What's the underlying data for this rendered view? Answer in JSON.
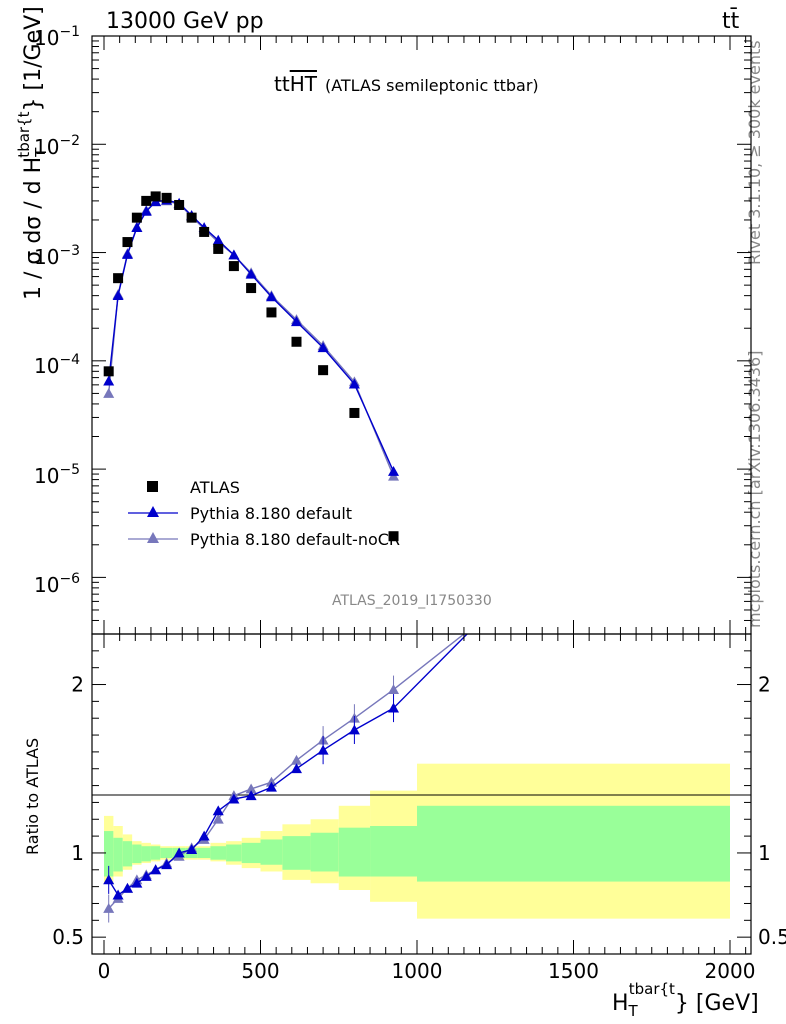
{
  "header": {
    "energy_label": "13000 GeV pp",
    "process_label": "tt̄"
  },
  "side_labels": {
    "rivet": "Rivet 3.1.10, ≥ 300k events",
    "mcplots": "mcplots.cern.ch [arXiv:1306.3436]"
  },
  "analysis_id": "ATLAS_2019_I1750330",
  "chart_data": [
    {
      "type": "scatter",
      "title": "ttHT (ATLAS semileptonic ttbar)",
      "title_main": "tt",
      "title_overline": "HT",
      "title_sub": "(ATLAS semileptonic ttbar)",
      "xlabel": "H_T^{tbar{t}} [GeV]",
      "ylabel": "1 / σ dσ / d H_T^{tbar{t}} [1/GeV]",
      "ylabel_parts": {
        "pre": "1 / σ dσ / d H",
        "sub": "T",
        "sup": "tbar{t",
        "post": "} [1/GeV]"
      },
      "xlabel_parts": {
        "main": "H",
        "sub": "T",
        "sup": "tbar{t",
        "post": "} [GeV]"
      },
      "yscale": "log",
      "ylim": [
        3e-07,
        0.1
      ],
      "xlim": [
        -50,
        2050
      ],
      "y_tick_labels": [
        "10^{-6}",
        "10^{-5}",
        "10^{-4}",
        "10^{-3}",
        "10^{-2}",
        "10^{-1}"
      ],
      "legend_position": "bottom-left",
      "x": [
        15,
        45,
        75,
        105,
        135,
        165,
        200,
        240,
        280,
        320,
        365,
        415,
        470,
        535,
        615,
        700,
        800,
        925,
        1500
      ],
      "series": [
        {
          "name": "ATLAS",
          "marker": "square",
          "color": "#000000",
          "values": [
            8e-05,
            0.00058,
            0.00125,
            0.0021,
            0.003,
            0.0033,
            0.0032,
            0.00275,
            0.0021,
            0.00155,
            0.00108,
            0.00075,
            0.00047,
            0.00028,
            0.00015,
            8.2e-05,
            3.3e-05,
            2.4e-06,
            null
          ]
        },
        {
          "name": "Pythia 8.180 default",
          "marker": "triangle",
          "color": "#0000cc",
          "values": [
            6.5e-05,
            0.0004,
            0.00096,
            0.0017,
            0.0024,
            0.00295,
            0.00305,
            0.00285,
            0.0022,
            0.0017,
            0.0013,
            0.00095,
            0.00063,
            0.00039,
            0.00023,
            0.000132,
            6.1e-05,
            9.5e-06,
            null
          ]
        },
        {
          "name": "Pythia 8.180 default-noCR",
          "marker": "triangle",
          "color": "#7777bb",
          "values": [
            5e-05,
            0.00041,
            0.00098,
            0.00172,
            0.00245,
            0.00295,
            0.003,
            0.0028,
            0.00215,
            0.00165,
            0.00125,
            0.00095,
            0.00065,
            0.0004,
            0.00024,
            0.000138,
            6.4e-05,
            8.6e-06,
            null
          ]
        }
      ]
    },
    {
      "type": "line",
      "ylabel": "Ratio to ATLAS",
      "ylim": [
        0.4,
        2.3
      ],
      "xlim": [
        -50,
        2050
      ],
      "x_ticks": [
        0,
        500,
        1000,
        1500,
        2000
      ],
      "y_ticks": [
        0.5,
        1,
        2
      ],
      "bands": {
        "edges": [
          0,
          30,
          60,
          90,
          120,
          150,
          180,
          220,
          260,
          300,
          340,
          390,
          440,
          500,
          570,
          660,
          750,
          850,
          1000,
          2000
        ],
        "green_lo": [
          0.86,
          0.89,
          0.92,
          0.94,
          0.95,
          0.96,
          0.97,
          0.97,
          0.97,
          0.97,
          0.96,
          0.95,
          0.94,
          0.93,
          0.9,
          0.89,
          0.86,
          0.86,
          0.83
        ],
        "green_hi": [
          1.13,
          1.09,
          1.07,
          1.05,
          1.04,
          1.04,
          1.03,
          1.03,
          1.03,
          1.03,
          1.04,
          1.05,
          1.06,
          1.08,
          1.1,
          1.12,
          1.15,
          1.16,
          1.28
        ],
        "yellow_lo": [
          0.82,
          0.86,
          0.9,
          0.93,
          0.94,
          0.95,
          0.96,
          0.96,
          0.96,
          0.96,
          0.95,
          0.93,
          0.91,
          0.89,
          0.84,
          0.82,
          0.78,
          0.71,
          0.61
        ],
        "yellow_hi": [
          1.22,
          1.16,
          1.11,
          1.07,
          1.06,
          1.05,
          1.04,
          1.04,
          1.04,
          1.04,
          1.06,
          1.07,
          1.09,
          1.13,
          1.17,
          1.2,
          1.28,
          1.37,
          1.53
        ]
      },
      "series": [
        {
          "name": "Pythia 8.180 default",
          "color": "#0000cc",
          "x": [
            15,
            45,
            75,
            105,
            135,
            165,
            200,
            240,
            280,
            320,
            365,
            415,
            470,
            535,
            615,
            700,
            800,
            925
          ],
          "values": [
            0.84,
            0.75,
            0.79,
            0.82,
            0.86,
            0.9,
            0.93,
            1.0,
            1.02,
            1.1,
            1.25,
            1.32,
            1.34,
            1.39,
            1.5,
            1.61,
            1.73,
            1.86
          ],
          "extends_to": [
            1160,
            2.3
          ]
        },
        {
          "name": "Pythia 8.180 default-noCR",
          "color": "#7777bb",
          "x": [
            15,
            45,
            75,
            105,
            135,
            165,
            200,
            240,
            280,
            320,
            365,
            415,
            470,
            535,
            615,
            700,
            800,
            925
          ],
          "values": [
            0.67,
            0.73,
            0.79,
            0.84,
            0.87,
            0.9,
            0.94,
            0.98,
            1.03,
            1.08,
            1.2,
            1.34,
            1.38,
            1.42,
            1.55,
            1.67,
            1.8,
            1.97
          ],
          "extends_to": [
            1150,
            2.3
          ]
        }
      ]
    }
  ]
}
